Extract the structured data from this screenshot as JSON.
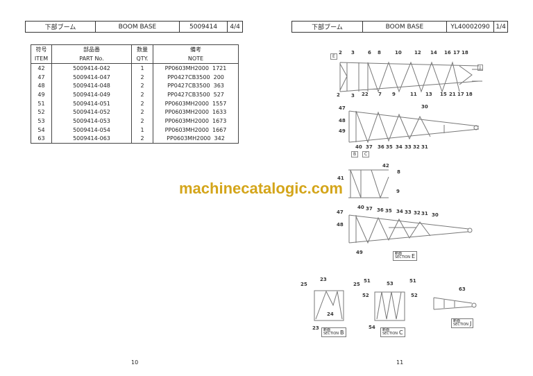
{
  "left_page": {
    "header": {
      "name_jp": "下部ブーム",
      "name_en": "BOOM BASE",
      "code": "5009414",
      "page": "4/4"
    },
    "table": {
      "headers": [
        {
          "jp": "符号",
          "en": "ITEM"
        },
        {
          "jp": "部品番",
          "en": "PART No."
        },
        {
          "jp": "数量",
          "en": "QTY."
        },
        {
          "jp": "備考",
          "en": "NOTE"
        }
      ],
      "rows": [
        {
          "item": "42",
          "part": "5009414-042",
          "qty": "1",
          "note": "PP0603MH2000  1721"
        },
        {
          "item": "47",
          "part": "5009414-047",
          "qty": "2",
          "note": "PP0427CB3500  200"
        },
        {
          "item": "48",
          "part": "5009414-048",
          "qty": "2",
          "note": "PP0427CB3500  363"
        },
        {
          "item": "49",
          "part": "5009414-049",
          "qty": "2",
          "note": "PP0427CB3500  527"
        },
        {
          "item": "51",
          "part": "5009414-051",
          "qty": "2",
          "note": "PP0603MH2000  1557"
        },
        {
          "item": "52",
          "part": "5009414-052",
          "qty": "2",
          "note": "PP0603MH2000  1633"
        },
        {
          "item": "53",
          "part": "5009414-053",
          "qty": "2",
          "note": "PP0603MH2000  1673"
        },
        {
          "item": "54",
          "part": "5009414-054",
          "qty": "1",
          "note": "PP0603MH2000  1667"
        },
        {
          "item": "63",
          "part": "5009414-063",
          "qty": "2",
          "note": "PP0603MH2000  342"
        }
      ]
    },
    "page_number": "10"
  },
  "right_page": {
    "header": {
      "name_jp": "下部ブーム",
      "name_en": "BOOM BASE",
      "code": "YL40002090",
      "page": "1/4"
    },
    "callouts": [
      "2",
      "3",
      "6",
      "8",
      "10",
      "12",
      "14",
      "16",
      "17",
      "18",
      "2",
      "3",
      "22",
      "7",
      "9",
      "11",
      "13",
      "15",
      "21",
      "17",
      "18",
      "47",
      "30",
      "48",
      "49",
      "40",
      "37",
      "36",
      "35",
      "34",
      "33",
      "32",
      "31",
      "42",
      "8",
      "41",
      "9",
      "40",
      "37",
      "36",
      "35",
      "34",
      "33",
      "32",
      "31",
      "30",
      "47",
      "48",
      "49",
      "25",
      "23",
      "25",
      "24",
      "23",
      "51",
      "53",
      "51",
      "52",
      "52",
      "54",
      "63"
    ],
    "view_markers": [
      "E",
      "J",
      "B",
      "C"
    ],
    "sections": [
      {
        "jp": "断面",
        "en": "SECTION",
        "letter": "E"
      },
      {
        "jp": "断面",
        "en": "SECTION",
        "letter": "B"
      },
      {
        "jp": "断面",
        "en": "SECTION",
        "letter": "C"
      },
      {
        "jp": "断面",
        "en": "SECTION",
        "letter": "J"
      }
    ],
    "page_number": "11"
  },
  "watermark": "machinecatalogic.com"
}
